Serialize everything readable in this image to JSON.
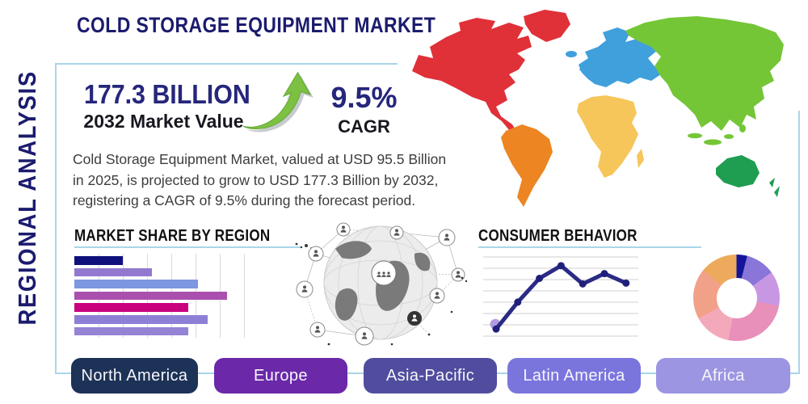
{
  "title": "COLD STORAGE EQUIPMENT MARKET",
  "side_label": "REGIONAL ANALYSIS",
  "stats": {
    "market_value": "177.3 BILLION",
    "market_value_caption": "2032 Market Value",
    "cagr_value": "9.5%",
    "cagr_caption": "CAGR"
  },
  "description": "Cold Storage Equipment Market, valued at USD 95.5 Billion in 2025, is projected to grow to USD 177.3 Billion by 2032, registering a CAGR of 9.5% during the forecast period.",
  "sections": {
    "market_share": {
      "heading": "MARKET SHARE BY REGION"
    },
    "consumer_behavior": {
      "heading": "CONSUMER BEHAVIOR"
    }
  },
  "chart_data": [
    {
      "type": "bar",
      "orientation": "horizontal",
      "title": "MARKET SHARE BY REGION",
      "categories": [
        "",
        "",
        "",
        "",
        "",
        "",
        ""
      ],
      "values": [
        20,
        32,
        51,
        63,
        47,
        55,
        47
      ],
      "xlim": [
        0,
        70
      ],
      "grid": true,
      "gridline_interval": 10,
      "colors": [
        "#10107c",
        "#9279cf",
        "#7d97e0",
        "#ab4fae",
        "#c9017e",
        "#8e7fd6",
        "#9583d6"
      ]
    },
    {
      "type": "line",
      "title": "CONSUMER BEHAVIOR",
      "x": [
        1,
        2,
        3,
        4,
        5,
        6,
        7
      ],
      "values": [
        11,
        45,
        75,
        91,
        68,
        81,
        69
      ],
      "ylim": [
        0,
        100
      ],
      "grid": "horizontal",
      "line_color": "#2b2b85",
      "point_color": "#20207a",
      "first_point_halo_color": "#b29ae0"
    },
    {
      "type": "pie",
      "donut": true,
      "title": "Regional split",
      "values": [
        4,
        11,
        13,
        25,
        14,
        19,
        14
      ],
      "colors": [
        "#15159b",
        "#8a76d8",
        "#c897e4",
        "#e88fba",
        "#f4a9ba",
        "#f2a189",
        "#eda95c"
      ]
    }
  ],
  "map": {
    "regions": [
      {
        "name": "North America",
        "color": "#e03038"
      },
      {
        "name": "South America",
        "color": "#ec8522"
      },
      {
        "name": "Europe",
        "color": "#3fa0dc"
      },
      {
        "name": "Africa",
        "color": "#f6c65a"
      },
      {
        "name": "Asia",
        "color": "#74c637"
      },
      {
        "name": "Australia",
        "color": "#1f9e52"
      }
    ]
  },
  "footer": {
    "buttons": [
      {
        "label": "North America",
        "color": "#1c3257"
      },
      {
        "label": "Europe",
        "color": "#6b28a9"
      },
      {
        "label": "Asia-Pacific",
        "color": "#504d9e"
      },
      {
        "label": "Latin America",
        "color": "#7a75dd"
      },
      {
        "label": "Africa",
        "color": "#9b95e2"
      }
    ]
  },
  "theme": {
    "accent_line": "#a9d5e8",
    "navy": "#1b1b6e",
    "arrow_green": "#7cc142"
  }
}
